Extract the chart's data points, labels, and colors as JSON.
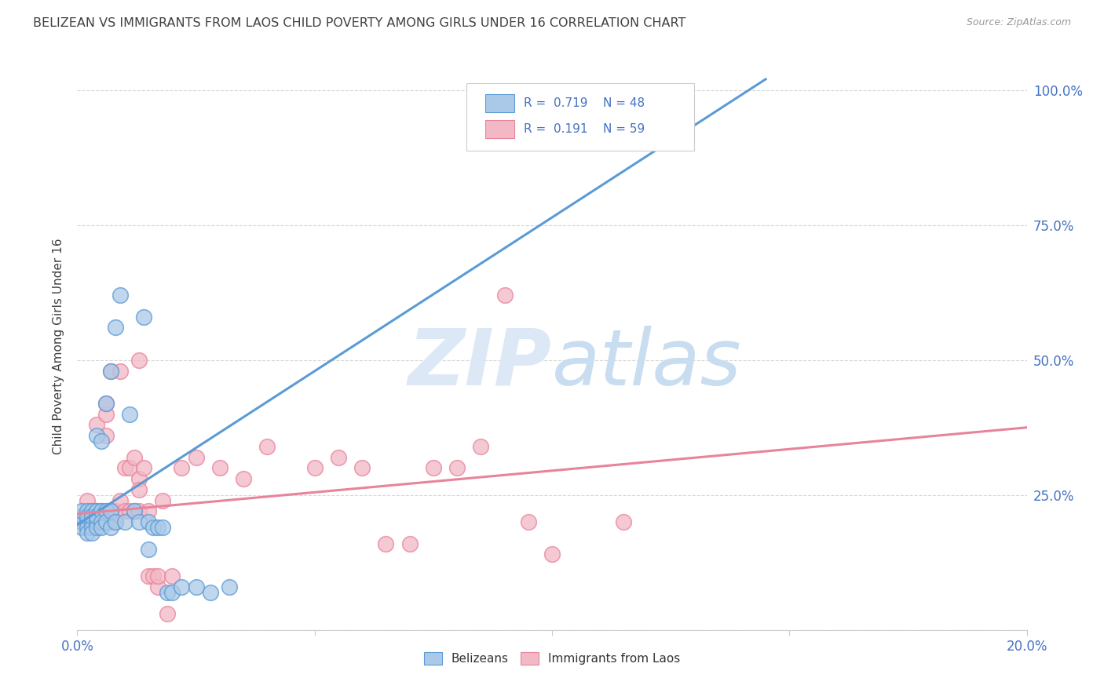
{
  "title": "BELIZEAN VS IMMIGRANTS FROM LAOS CHILD POVERTY AMONG GIRLS UNDER 16 CORRELATION CHART",
  "source": "Source: ZipAtlas.com",
  "ylabel": "Child Poverty Among Girls Under 16",
  "xmin": 0.0,
  "xmax": 0.2,
  "ymin": 0.0,
  "ymax": 1.05,
  "yticks": [
    0.0,
    0.25,
    0.5,
    0.75,
    1.0
  ],
  "ytick_labels": [
    "",
    "25.0%",
    "50.0%",
    "75.0%",
    "100.0%"
  ],
  "watermark_zip": "ZIP",
  "watermark_atlas": "atlas",
  "blue_color": "#5b9bd5",
  "blue_fill": "#aac9e8",
  "pink_color": "#e8849a",
  "pink_fill": "#f2b8c6",
  "legend_R_blue": "0.719",
  "legend_N_blue": "48",
  "legend_R_pink": "0.191",
  "legend_N_pink": "59",
  "belizeans_label": "Belizeans",
  "laos_label": "Immigrants from Laos",
  "blue_scatter": [
    [
      0.001,
      0.2
    ],
    [
      0.001,
      0.19
    ],
    [
      0.001,
      0.21
    ],
    [
      0.001,
      0.22
    ],
    [
      0.002,
      0.2
    ],
    [
      0.002,
      0.19
    ],
    [
      0.002,
      0.22
    ],
    [
      0.002,
      0.21
    ],
    [
      0.002,
      0.18
    ],
    [
      0.003,
      0.22
    ],
    [
      0.003,
      0.2
    ],
    [
      0.003,
      0.19
    ],
    [
      0.003,
      0.21
    ],
    [
      0.003,
      0.18
    ],
    [
      0.004,
      0.22
    ],
    [
      0.004,
      0.2
    ],
    [
      0.004,
      0.36
    ],
    [
      0.004,
      0.19
    ],
    [
      0.004,
      0.21
    ],
    [
      0.005,
      0.22
    ],
    [
      0.005,
      0.2
    ],
    [
      0.005,
      0.35
    ],
    [
      0.005,
      0.19
    ],
    [
      0.006,
      0.22
    ],
    [
      0.006,
      0.2
    ],
    [
      0.006,
      0.42
    ],
    [
      0.007,
      0.48
    ],
    [
      0.007,
      0.22
    ],
    [
      0.007,
      0.19
    ],
    [
      0.008,
      0.56
    ],
    [
      0.008,
      0.2
    ],
    [
      0.009,
      0.62
    ],
    [
      0.01,
      0.2
    ],
    [
      0.011,
      0.4
    ],
    [
      0.012,
      0.22
    ],
    [
      0.013,
      0.2
    ],
    [
      0.014,
      0.58
    ],
    [
      0.015,
      0.2
    ],
    [
      0.015,
      0.15
    ],
    [
      0.016,
      0.19
    ],
    [
      0.017,
      0.19
    ],
    [
      0.018,
      0.19
    ],
    [
      0.019,
      0.07
    ],
    [
      0.02,
      0.07
    ],
    [
      0.022,
      0.08
    ],
    [
      0.025,
      0.08
    ],
    [
      0.028,
      0.07
    ],
    [
      0.032,
      0.08
    ]
  ],
  "pink_scatter": [
    [
      0.001,
      0.2
    ],
    [
      0.002,
      0.22
    ],
    [
      0.002,
      0.24
    ],
    [
      0.003,
      0.22
    ],
    [
      0.003,
      0.2
    ],
    [
      0.003,
      0.22
    ],
    [
      0.004,
      0.2
    ],
    [
      0.004,
      0.22
    ],
    [
      0.004,
      0.38
    ],
    [
      0.004,
      0.22
    ],
    [
      0.005,
      0.22
    ],
    [
      0.005,
      0.2
    ],
    [
      0.005,
      0.22
    ],
    [
      0.006,
      0.4
    ],
    [
      0.006,
      0.42
    ],
    [
      0.006,
      0.22
    ],
    [
      0.006,
      0.36
    ],
    [
      0.007,
      0.22
    ],
    [
      0.007,
      0.48
    ],
    [
      0.007,
      0.2
    ],
    [
      0.008,
      0.22
    ],
    [
      0.008,
      0.2
    ],
    [
      0.009,
      0.24
    ],
    [
      0.009,
      0.48
    ],
    [
      0.01,
      0.22
    ],
    [
      0.01,
      0.3
    ],
    [
      0.011,
      0.3
    ],
    [
      0.011,
      0.22
    ],
    [
      0.012,
      0.32
    ],
    [
      0.012,
      0.22
    ],
    [
      0.013,
      0.22
    ],
    [
      0.013,
      0.28
    ],
    [
      0.013,
      0.26
    ],
    [
      0.013,
      0.5
    ],
    [
      0.014,
      0.3
    ],
    [
      0.015,
      0.22
    ],
    [
      0.015,
      0.1
    ],
    [
      0.016,
      0.1
    ],
    [
      0.017,
      0.08
    ],
    [
      0.017,
      0.1
    ],
    [
      0.018,
      0.24
    ],
    [
      0.019,
      0.03
    ],
    [
      0.02,
      0.1
    ],
    [
      0.022,
      0.3
    ],
    [
      0.025,
      0.32
    ],
    [
      0.03,
      0.3
    ],
    [
      0.035,
      0.28
    ],
    [
      0.04,
      0.34
    ],
    [
      0.05,
      0.3
    ],
    [
      0.055,
      0.32
    ],
    [
      0.06,
      0.3
    ],
    [
      0.065,
      0.16
    ],
    [
      0.07,
      0.16
    ],
    [
      0.075,
      0.3
    ],
    [
      0.08,
      0.3
    ],
    [
      0.085,
      0.34
    ],
    [
      0.09,
      0.62
    ],
    [
      0.095,
      0.2
    ],
    [
      0.1,
      0.14
    ],
    [
      0.115,
      0.2
    ]
  ],
  "blue_line_x": [
    0.0,
    0.145
  ],
  "blue_line_y": [
    0.195,
    1.02
  ],
  "pink_line_x": [
    0.0,
    0.2
  ],
  "pink_line_y": [
    0.215,
    0.375
  ],
  "grid_color": "#d8d8d8",
  "background_color": "#ffffff",
  "title_color": "#404040",
  "axis_label_color": "#404040",
  "right_axis_color": "#4472c4",
  "watermark_color": "#dce8f5",
  "watermark_atlas_color": "#c8ddf0"
}
